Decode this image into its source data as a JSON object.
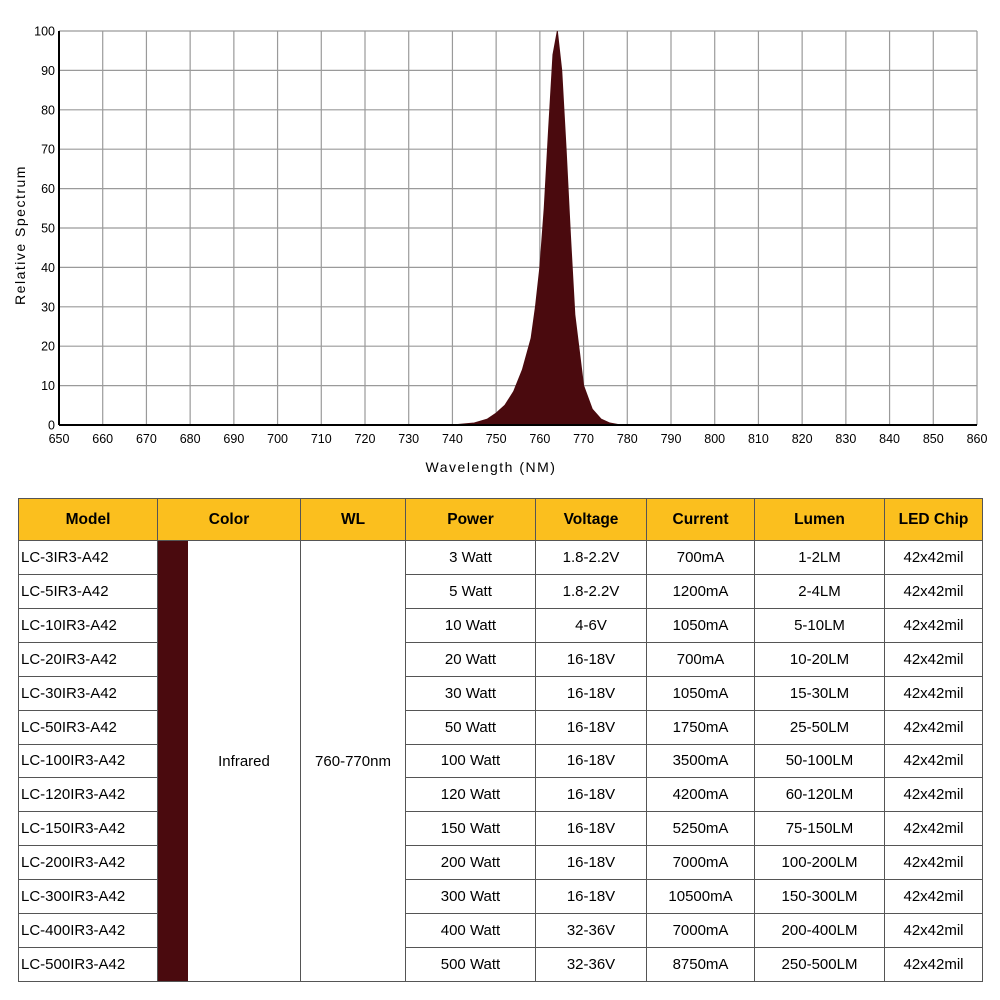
{
  "chart_data": {
    "type": "area",
    "xlabel": "Wavelength (NM)",
    "ylabel": "Relative Spectrum",
    "xlim": [
      650,
      860
    ],
    "ylim": [
      0,
      100
    ],
    "xticks": [
      650,
      660,
      670,
      680,
      690,
      700,
      710,
      720,
      730,
      740,
      750,
      760,
      770,
      780,
      790,
      800,
      810,
      820,
      830,
      840,
      850,
      860
    ],
    "yticks": [
      0,
      10,
      20,
      30,
      40,
      50,
      60,
      70,
      80,
      90,
      100
    ],
    "grid": true,
    "series": [
      {
        "color": "#4a0a0e",
        "x": [
          740,
          745,
          748,
          750,
          752,
          754,
          756,
          758,
          759,
          760,
          761,
          762,
          763,
          764,
          765,
          766,
          767,
          768,
          770,
          772,
          774,
          776,
          778,
          780
        ],
        "y": [
          0,
          0.5,
          1.5,
          3,
          5,
          8.5,
          14,
          22,
          30,
          40,
          55,
          75,
          94,
          100,
          90,
          70,
          48,
          28,
          10,
          4,
          1.5,
          0.5,
          0.1,
          0
        ]
      }
    ]
  },
  "table": {
    "headers": [
      "Model",
      "Color",
      "WL",
      "Power",
      "Voltage",
      "Current",
      "Lumen",
      "LED Chip"
    ],
    "color_label": "Infrared",
    "color_hex": "#4a0a0e",
    "wl": "760-770nm",
    "rows": [
      [
        "LC-3IR3-A42",
        "3 Watt",
        "1.8-2.2V",
        "700mA",
        "1-2LM",
        "42x42mil"
      ],
      [
        "LC-5IR3-A42",
        "5 Watt",
        "1.8-2.2V",
        "1200mA",
        "2-4LM",
        "42x42mil"
      ],
      [
        "LC-10IR3-A42",
        "10 Watt",
        "4-6V",
        "1050mA",
        "5-10LM",
        "42x42mil"
      ],
      [
        "LC-20IR3-A42",
        "20 Watt",
        "16-18V",
        "700mA",
        "10-20LM",
        "42x42mil"
      ],
      [
        "LC-30IR3-A42",
        "30 Watt",
        "16-18V",
        "1050mA",
        "15-30LM",
        "42x42mil"
      ],
      [
        "LC-50IR3-A42",
        "50 Watt",
        "16-18V",
        "1750mA",
        "25-50LM",
        "42x42mil"
      ],
      [
        "LC-100IR3-A42",
        "100 Watt",
        "16-18V",
        "3500mA",
        "50-100LM",
        "42x42mil"
      ],
      [
        "LC-120IR3-A42",
        "120 Watt",
        "16-18V",
        "4200mA",
        "60-120LM",
        "42x42mil"
      ],
      [
        "LC-150IR3-A42",
        "150 Watt",
        "16-18V",
        "5250mA",
        "75-150LM",
        "42x42mil"
      ],
      [
        "LC-200IR3-A42",
        "200 Watt",
        "16-18V",
        "7000mA",
        "100-200LM",
        "42x42mil"
      ],
      [
        "LC-300IR3-A42",
        "300 Watt",
        "16-18V",
        "10500mA",
        "150-300LM",
        "42x42mil"
      ],
      [
        "LC-400IR3-A42",
        "400 Watt",
        "32-36V",
        "7000mA",
        "200-400LM",
        "42x42mil"
      ],
      [
        "LC-500IR3-A42",
        "500 Watt",
        "32-36V",
        "8750mA",
        "250-500LM",
        "42x42mil"
      ]
    ]
  }
}
